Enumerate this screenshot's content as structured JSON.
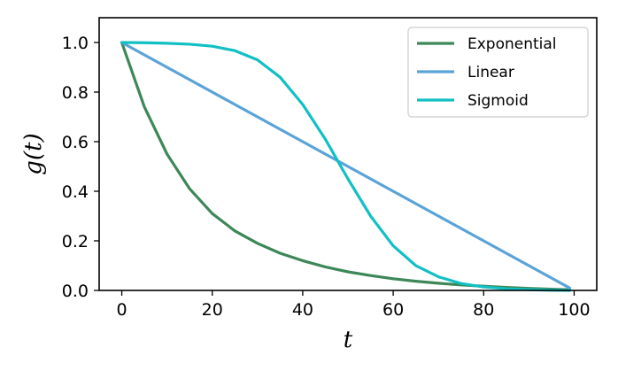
{
  "chart_data": {
    "type": "line",
    "xlabel": "t",
    "ylabel": "g(t)",
    "xlim": [
      -5,
      105
    ],
    "ylim": [
      0,
      1.1
    ],
    "xticks": [
      0,
      20,
      40,
      60,
      80,
      100
    ],
    "yticks": [
      0.0,
      0.2,
      0.4,
      0.6,
      0.8,
      1.0
    ],
    "xtick_labels": [
      "0",
      "20",
      "40",
      "60",
      "80",
      "100"
    ],
    "ytick_labels": [
      "0.0",
      "0.2",
      "0.4",
      "0.6",
      "0.8",
      "1.0"
    ],
    "grid": false,
    "legend_position": "top-right",
    "x": [
      0,
      5,
      10,
      15,
      20,
      25,
      30,
      35,
      40,
      45,
      50,
      55,
      60,
      65,
      70,
      75,
      80,
      85,
      90,
      95,
      99
    ],
    "series": [
      {
        "name": "Exponential",
        "color": "#3d8758",
        "values": [
          1.0,
          0.74,
          0.55,
          0.41,
          0.31,
          0.24,
          0.19,
          0.15,
          0.12,
          0.095,
          0.075,
          0.06,
          0.047,
          0.037,
          0.029,
          0.022,
          0.017,
          0.012,
          0.008,
          0.005,
          0.003
        ]
      },
      {
        "name": "Linear",
        "color": "#5aa3d8",
        "values": [
          1.0,
          0.95,
          0.9,
          0.85,
          0.8,
          0.75,
          0.7,
          0.65,
          0.6,
          0.55,
          0.5,
          0.45,
          0.4,
          0.35,
          0.3,
          0.25,
          0.2,
          0.15,
          0.1,
          0.05,
          0.01
        ]
      },
      {
        "name": "Sigmoid",
        "color": "#12c0c4",
        "values": [
          1.0,
          0.999,
          0.997,
          0.993,
          0.985,
          0.967,
          0.93,
          0.86,
          0.75,
          0.61,
          0.45,
          0.3,
          0.18,
          0.1,
          0.055,
          0.028,
          0.014,
          0.007,
          0.003,
          0.001,
          0.0
        ]
      }
    ]
  }
}
